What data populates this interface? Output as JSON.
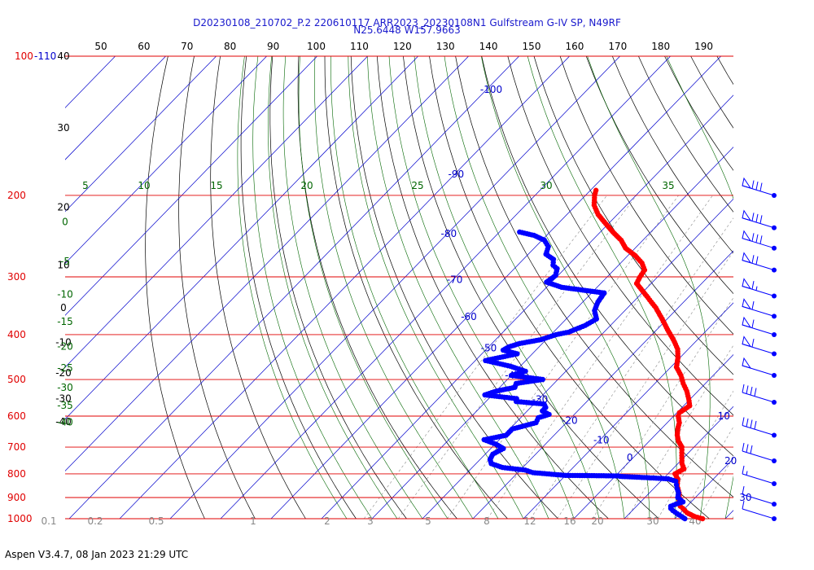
{
  "header": {
    "title_line1": "D20230108_210702_P.2 220610117 ARR2023_20230108N1 Gulfstream G-IV SP, N49RF",
    "title_line2": "N25.6448 W157.9663"
  },
  "footer": {
    "text": "Aspen V3.4.7, 08 Jan 2023  21:29 UTC"
  },
  "colors": {
    "isobar": "#e00000",
    "isotherm": "#0000cc",
    "dry_adiabat": "#000000",
    "moist_adiabat": "#006600",
    "mixing_ratio": "#888888",
    "temperature_profile": "#ff0000",
    "dewpoint_profile": "#0000ff",
    "title": "#1a1acd"
  },
  "chart_data": {
    "type": "line",
    "subtype": "skew-T log-p diagram",
    "title": "D20230108_210702_P.2 220610117 ARR2023_20230108N1 Gulfstream G-IV SP, N49RF",
    "subtitle": "N25.6448 W157.9663",
    "y_axis": {
      "scale": "log",
      "ylim": [
        1000,
        100
      ],
      "tick_labels": [
        "100",
        "200",
        "300",
        "400",
        "500",
        "600",
        "700",
        "800",
        "900",
        "1000"
      ]
    },
    "pressure_top_label": "-110",
    "isotherm_labels": [
      "-100",
      "-90",
      "-80",
      "-70",
      "-60",
      "-50",
      "-40",
      "-30",
      "-20",
      "-10",
      "0",
      "10",
      "20",
      "30"
    ],
    "top_theta_labels": [
      "50",
      "60",
      "70",
      "80",
      "90",
      "100",
      "110",
      "120",
      "130",
      "140",
      "150",
      "160",
      "170",
      "180",
      "190"
    ],
    "left_theta_labels": [
      "40",
      "30",
      "20",
      "10",
      "0",
      "-10",
      "-20",
      "-30",
      "-40"
    ],
    "theta_e_labels": [
      "5",
      "10",
      "15",
      "20",
      "25",
      "30",
      "35"
    ],
    "theta_e_left_labels": [
      "0",
      "-5",
      "-10",
      "-15",
      "-20",
      "-25",
      "-30",
      "-35",
      "-40"
    ],
    "mixing_ratio_labels": [
      "0.1",
      "0.2",
      "0.5",
      "1",
      "2",
      "3",
      "5",
      "8",
      "12",
      "16",
      "20",
      "30",
      "40"
    ],
    "series": [
      {
        "key": "temperature",
        "x_label": "temperature (°C)",
        "points": [
          [
            1000,
            25.5
          ],
          [
            990,
            23.6
          ],
          [
            980,
            22.4
          ],
          [
            970,
            21.2
          ],
          [
            960,
            20.4
          ],
          [
            950,
            19.6
          ],
          [
            940,
            18.7
          ],
          [
            920,
            17.6
          ],
          [
            900,
            16.8
          ],
          [
            880,
            15.9
          ],
          [
            850,
            14.2
          ],
          [
            820,
            12.9
          ],
          [
            800,
            11.4
          ],
          [
            780,
            12.2
          ],
          [
            760,
            10.8
          ],
          [
            730,
            9.2
          ],
          [
            700,
            7.6
          ],
          [
            680,
            5.8
          ],
          [
            660,
            4.4
          ],
          [
            640,
            3.3
          ],
          [
            620,
            2.4
          ],
          [
            600,
            0.9
          ],
          [
            590,
            0.5
          ],
          [
            570,
            1.2
          ],
          [
            550,
            -0.4
          ],
          [
            530,
            -2.2
          ],
          [
            510,
            -4.4
          ],
          [
            490,
            -6.4
          ],
          [
            470,
            -8.9
          ],
          [
            450,
            -10.3
          ],
          [
            430,
            -12.1
          ],
          [
            410,
            -14.8
          ],
          [
            390,
            -17.9
          ],
          [
            370,
            -21.0
          ],
          [
            350,
            -24.4
          ],
          [
            330,
            -28.5
          ],
          [
            310,
            -32.9
          ],
          [
            300,
            -33.5
          ],
          [
            290,
            -33.9
          ],
          [
            280,
            -35.8
          ],
          [
            270,
            -38.5
          ],
          [
            260,
            -41.9
          ],
          [
            250,
            -44.3
          ],
          [
            240,
            -47.5
          ],
          [
            230,
            -50.6
          ],
          [
            220,
            -53.8
          ],
          [
            210,
            -56.4
          ],
          [
            200,
            -58.2
          ],
          [
            195,
            -58.9
          ]
        ]
      },
      {
        "key": "dewpoint",
        "x_label": "dewpoint (°C)",
        "points": [
          [
            1000,
            22.0
          ],
          [
            990,
            21.0
          ],
          [
            975,
            19.5
          ],
          [
            960,
            18.0
          ],
          [
            950,
            17.2
          ],
          [
            940,
            16.8
          ],
          [
            930,
            17.4
          ],
          [
            920,
            18.4
          ],
          [
            900,
            16.5
          ],
          [
            880,
            15.8
          ],
          [
            860,
            14.6
          ],
          [
            845,
            13.8
          ],
          [
            830,
            13.0
          ],
          [
            820,
            11.0
          ],
          [
            815,
            6.5
          ],
          [
            810,
            1.0
          ],
          [
            808,
            0.5
          ],
          [
            806,
            -10.0
          ],
          [
            803,
            -12.0
          ],
          [
            795,
            -17.0
          ],
          [
            785,
            -19.0
          ],
          [
            775,
            -24.0
          ],
          [
            760,
            -27.0
          ],
          [
            745,
            -28.0
          ],
          [
            725,
            -28.5
          ],
          [
            705,
            -27.5
          ],
          [
            690,
            -29.8
          ],
          [
            675,
            -33.0
          ],
          [
            660,
            -29.5
          ],
          [
            640,
            -29.5
          ],
          [
            620,
            -26.0
          ],
          [
            605,
            -26.5
          ],
          [
            595,
            -25.0
          ],
          [
            585,
            -27.0
          ],
          [
            575,
            -27.0
          ],
          [
            565,
            -28.0
          ],
          [
            558,
            -34.0
          ],
          [
            550,
            -34.5
          ],
          [
            540,
            -41.5
          ],
          [
            530,
            -40.0
          ],
          [
            520,
            -37.0
          ],
          [
            510,
            -37.5
          ],
          [
            500,
            -33.0
          ],
          [
            490,
            -40.0
          ],
          [
            480,
            -38.0
          ],
          [
            468,
            -42.0
          ],
          [
            455,
            -48.0
          ],
          [
            440,
            -43.0
          ],
          [
            432,
            -46.5
          ],
          [
            425,
            -46.0
          ],
          [
            418,
            -44.5
          ],
          [
            410,
            -41.0
          ],
          [
            400,
            -39.0
          ],
          [
            395,
            -37.0
          ],
          [
            382,
            -35.0
          ],
          [
            370,
            -34.0
          ],
          [
            355,
            -36.0
          ],
          [
            340,
            -37.0
          ],
          [
            325,
            -37.5
          ],
          [
            316,
            -47.0
          ],
          [
            308,
            -51.0
          ],
          [
            298,
            -50.5
          ],
          [
            288,
            -51.5
          ],
          [
            283,
            -53.0
          ],
          [
            275,
            -54.0
          ],
          [
            268,
            -56.5
          ],
          [
            258,
            -57.5
          ],
          [
            250,
            -59.5
          ],
          [
            244,
            -62.5
          ],
          [
            240,
            -66.0
          ]
        ]
      }
    ],
    "wind_barbs": [
      {
        "pressure": 200,
        "shape": "pennant+3 barbs"
      },
      {
        "pressure": 235,
        "shape": "pennant+3 barbs"
      },
      {
        "pressure": 260,
        "shape": "pennant+3 barbs"
      },
      {
        "pressure": 290,
        "shape": "pennant+2 barbs"
      },
      {
        "pressure": 330,
        "shape": "pennant+1.5 barbs"
      },
      {
        "pressure": 365,
        "shape": "pennant+1 barb"
      },
      {
        "pressure": 400,
        "shape": "pennant+1 barb"
      },
      {
        "pressure": 440,
        "shape": "pennant+1 barb"
      },
      {
        "pressure": 490,
        "shape": "pennant"
      },
      {
        "pressure": 560,
        "shape": "4 barbs"
      },
      {
        "pressure": 660,
        "shape": "4 barbs"
      },
      {
        "pressure": 750,
        "shape": "3 barbs"
      },
      {
        "pressure": 840,
        "shape": "1.5 barbs"
      },
      {
        "pressure": 930,
        "shape": "1 barb"
      },
      {
        "pressure": 1000,
        "shape": "1 barb"
      }
    ],
    "grid": true
  }
}
